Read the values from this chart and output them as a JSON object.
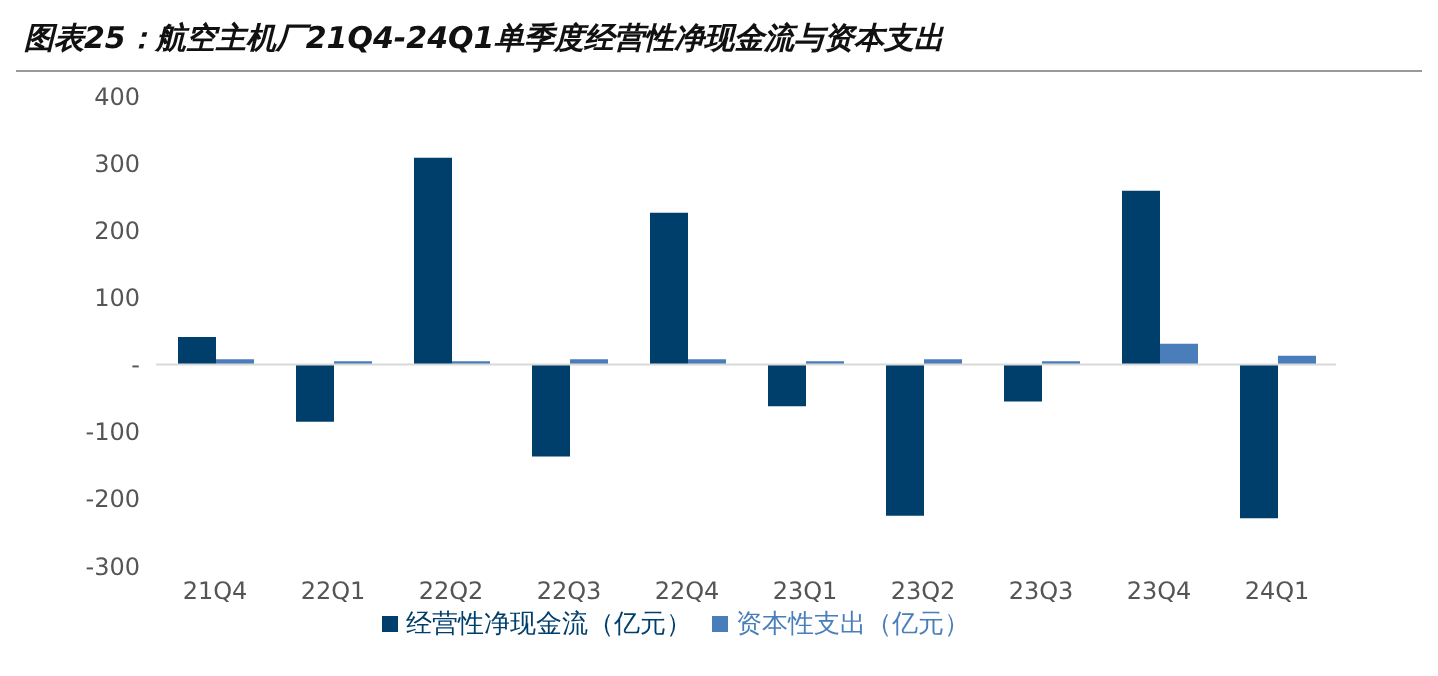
{
  "chart_data": {
    "type": "bar",
    "title": "图表25：航空主机厂21Q4-24Q1单季度经营性净现金流与资本支出",
    "categories": [
      "21Q4",
      "22Q1",
      "22Q2",
      "22Q3",
      "22Q4",
      "23Q1",
      "23Q2",
      "23Q3",
      "23Q4",
      "24Q1"
    ],
    "series": [
      {
        "name": "经营性净现金流（亿元）",
        "color": "#003f6b",
        "values": [
          41,
          -85,
          308,
          -137,
          226,
          -62,
          -225,
          -55,
          259,
          -229
        ]
      },
      {
        "name": "资本性支出（亿元）",
        "color": "#4a7ebb",
        "values": [
          8,
          5,
          5,
          8,
          8,
          5,
          8,
          5,
          31,
          13
        ]
      }
    ],
    "ylim": [
      -300,
      400
    ],
    "yticks": [
      -300,
      -200,
      -100,
      {
        "value": 0,
        "label": "-"
      },
      100,
      200,
      300,
      400
    ],
    "ref_lines": [
      {
        "axis": "y",
        "value": 0,
        "color": "#d9d9d9"
      }
    ],
    "grid": false,
    "legend": "bottom"
  }
}
